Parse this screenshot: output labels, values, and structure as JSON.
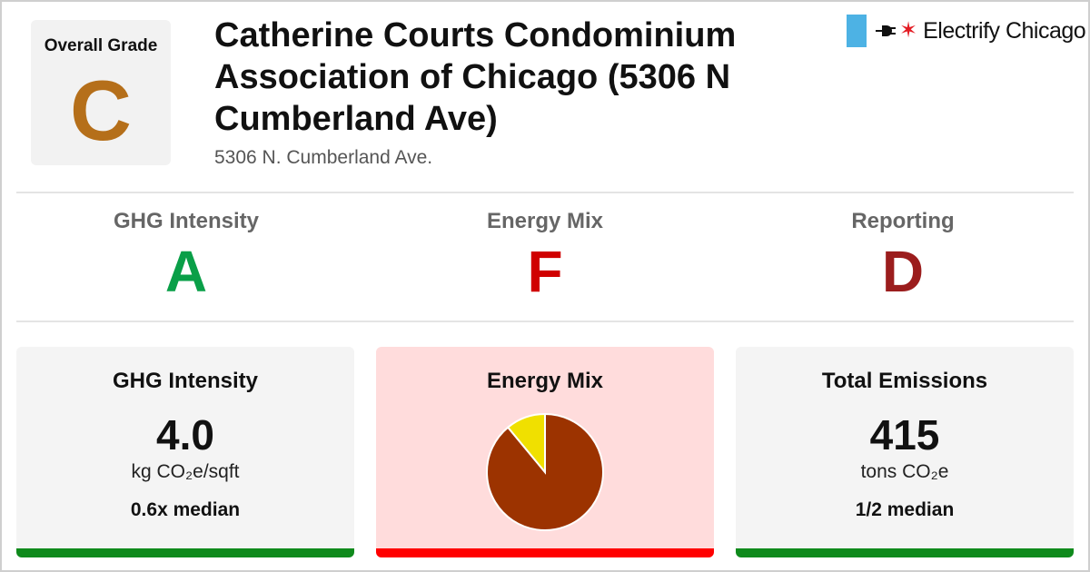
{
  "header": {
    "overall_grade_label": "Overall Grade",
    "overall_grade": "C",
    "overall_grade_color": "#b56f1a",
    "title": "Catherine Courts Condominium Association of Chicago (5306 N Cumberland Ave)",
    "address": "5306 N. Cumberland Ave."
  },
  "logo": {
    "text": "Electrify Chicago",
    "icons": [
      "flag-block-icon",
      "plug-icon",
      "star-icon"
    ]
  },
  "grades": [
    {
      "label": "GHG Intensity",
      "grade": "A",
      "color": "#0a9f48"
    },
    {
      "label": "Energy Mix",
      "grade": "F",
      "color": "#d00000"
    },
    {
      "label": "Reporting",
      "grade": "D",
      "color": "#9b1d1d"
    }
  ],
  "cards": {
    "ghg": {
      "title": "GHG Intensity",
      "value": "4.0",
      "unit": "kg CO₂e/sqft",
      "median": "0.6x median",
      "bg": "#f4f4f4",
      "bar_color": "#0f8a1c"
    },
    "energy": {
      "title": "Energy Mix",
      "bg": "#ffdcdc",
      "bar_color": "#ff0000"
    },
    "emissions": {
      "title": "Total Emissions",
      "value": "415",
      "unit": "tons CO₂e",
      "median": "1/2 median",
      "bg": "#f4f4f4",
      "bar_color": "#0f8a1c"
    }
  },
  "chart_data": {
    "type": "pie",
    "slices": [
      {
        "value": 0.89,
        "color": "#9c3300"
      },
      {
        "value": 0.11,
        "color": "#f0e000"
      }
    ]
  }
}
